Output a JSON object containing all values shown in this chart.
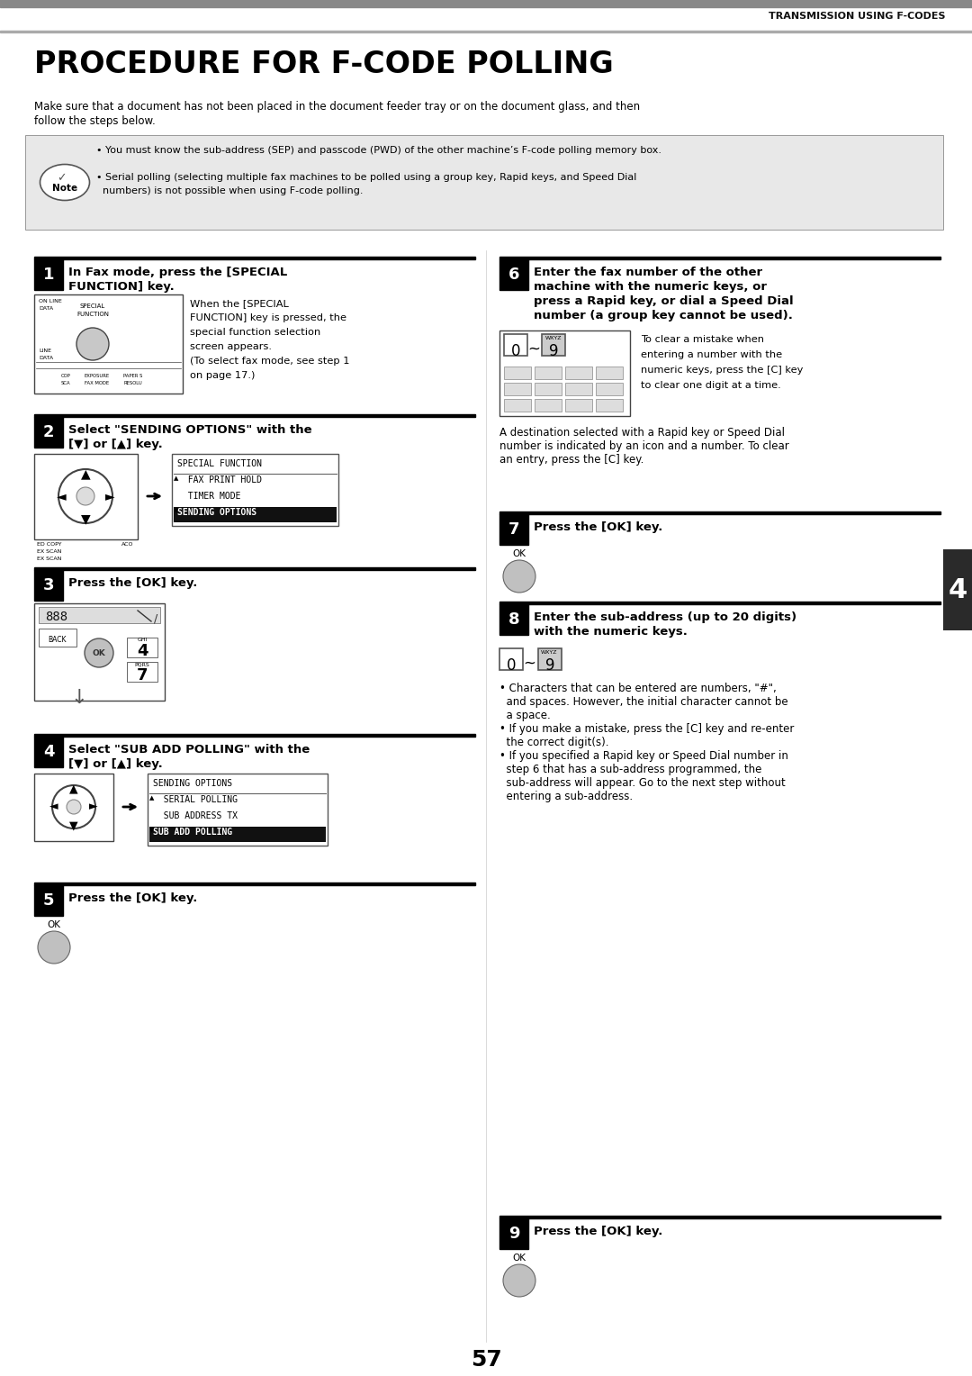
{
  "page_title": "PROCEDURE FOR F-CODE POLLING",
  "header_text": "TRANSMISSION USING F-CODES",
  "intro_line1": "Make sure that a document has not been placed in the document feeder tray or on the document glass, and then",
  "intro_line2": "follow the steps below.",
  "note_bullet1": "You must know the sub-address (SEP) and passcode (PWD) of the other machine’s F-code polling memory box.",
  "note_bullet2": "Serial polling (selecting multiple fax machines to be polled using a group key, Rapid keys, and Speed Dial",
  "note_bullet2b": "numbers) is not possible when using F-code polling.",
  "step1_title_l1": "In Fax mode, press the [SPECIAL",
  "step1_title_l2": "FUNCTION] key.",
  "step1_desc_l1": "When the [SPECIAL",
  "step1_desc_l2": "FUNCTION] key is pressed, the",
  "step1_desc_l3": "special function selection",
  "step1_desc_l4": "screen appears.",
  "step1_desc_l5": "(To select fax mode, see step 1",
  "step1_desc_l6": "on page 17.)",
  "step2_title_l1": "Select \"SENDING OPTIONS\" with the",
  "step2_title_l2": "[▼] or [▲] key.",
  "step2_menu": [
    "SPECIAL FUNCTION",
    "  FAX PRINT HOLD",
    "  TIMER MODE",
    "SENDING OPTIONS"
  ],
  "step3_title": "Press the [OK] key.",
  "step4_title_l1": "Select \"SUB ADD POLLING\" with the",
  "step4_title_l2": "[▼] or [▲] key.",
  "step4_menu": [
    "SENDING OPTIONS",
    "  SERIAL POLLING",
    "  SUB ADDRESS TX",
    "SUB ADD POLLING"
  ],
  "step5_title": "Press the [OK] key.",
  "step6_title_l1": "Enter the fax number of the other",
  "step6_title_l2": "machine with the numeric keys, or",
  "step6_title_l3": "press a Rapid key, or dial a Speed Dial",
  "step6_title_l4": "number (a group key cannot be used).",
  "step6_desc_l1": "To clear a mistake when",
  "step6_desc_l2": "entering a number with the",
  "step6_desc_l3": "numeric keys, press the [C] key",
  "step6_desc_l4": "to clear one digit at a time.",
  "step6_note_l1": "A destination selected with a Rapid key or Speed Dial",
  "step6_note_l2": "number is indicated by an icon and a number. To clear",
  "step6_note_l3": "an entry, press the [C] key.",
  "step7_title": "Press the [OK] key.",
  "step8_title_l1": "Enter the sub-address (up to 20 digits)",
  "step8_title_l2": "with the numeric keys.",
  "step8_b1_l1": "• Characters that can be entered are numbers, \"#\",",
  "step8_b1_l2": "  and spaces. However, the initial character cannot be",
  "step8_b1_l3": "  a space.",
  "step8_b2_l1": "• If you make a mistake, press the [C] key and re-enter",
  "step8_b2_l2": "  the correct digit(s).",
  "step8_b3_l1": "• If you specified a Rapid key or Speed Dial number in",
  "step8_b3_l2": "  step 6 that has a sub-address programmed, the",
  "step8_b3_l3": "  sub-address will appear. Go to the next step without",
  "step8_b3_l4": "  entering a sub-address.",
  "step9_title": "Press the [OK] key.",
  "page_number": "57",
  "tab_number": "4"
}
